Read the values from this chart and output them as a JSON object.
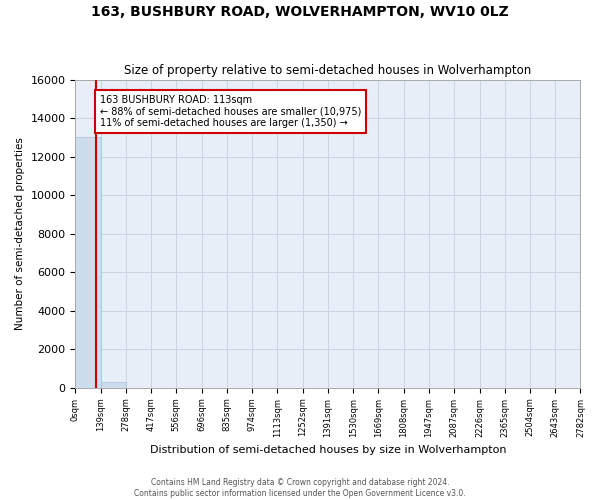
{
  "title": "163, BUSHBURY ROAD, WOLVERHAMPTON, WV10 0LZ",
  "subtitle": "Size of property relative to semi-detached houses in Wolverhampton",
  "xlabel": "Distribution of semi-detached houses by size in Wolverhampton",
  "ylabel": "Number of semi-detached properties",
  "property_label": "163 BUSHBURY ROAD: 113sqm",
  "pct_smaller": 88,
  "count_smaller": 10975,
  "pct_larger": 11,
  "count_larger": 1350,
  "bin_edges": [
    0,
    139,
    278,
    417,
    556,
    696,
    835,
    974,
    1113,
    1252,
    1391,
    1530,
    1669,
    1808,
    1947,
    2087,
    2226,
    2365,
    2504,
    2643,
    2782
  ],
  "bin_counts": [
    13000,
    300,
    5,
    2,
    1,
    1,
    0,
    0,
    0,
    0,
    0,
    0,
    0,
    0,
    0,
    0,
    0,
    0,
    0,
    0
  ],
  "bar_color": "#ccdded",
  "bar_edge_color": "#aabfd8",
  "vline_color": "#cc0000",
  "vline_x": 113,
  "annotation_box_color": "#cc0000",
  "ylim": [
    0,
    16000
  ],
  "yticks": [
    0,
    2000,
    4000,
    6000,
    8000,
    10000,
    12000,
    14000,
    16000
  ],
  "grid_color": "#c8d4e4",
  "background_color": "#e8eef8",
  "footer_line1": "Contains HM Land Registry data © Crown copyright and database right 2024.",
  "footer_line2": "Contains public sector information licensed under the Open Government Licence v3.0."
}
